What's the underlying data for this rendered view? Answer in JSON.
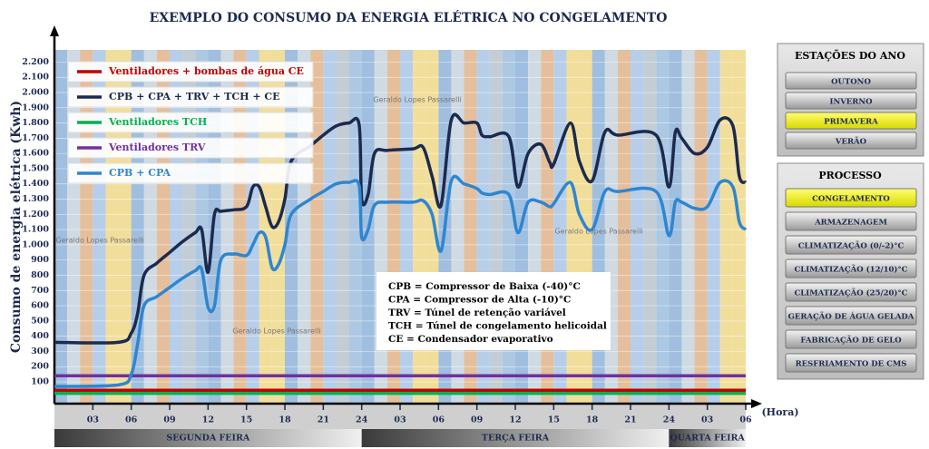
{
  "chart_data": {
    "type": "line",
    "title": "EXEMPLO DO CONSUMO DA ENERGIA ELÉTRICA NO CONGELAMENTO",
    "y_label": "Consumo de energia elétrica (Kwh)",
    "x_label": "(Hora)",
    "xlim": [
      0,
      54
    ],
    "ylim": [
      0,
      2280
    ],
    "grid": true,
    "xticks": [
      {
        "value": 3,
        "label": "03"
      },
      {
        "value": 6,
        "label": "06"
      },
      {
        "value": 9,
        "label": "09"
      },
      12,
      15,
      18,
      21,
      24,
      {
        "value": 27,
        "label": "03"
      },
      {
        "value": 30,
        "label": "06"
      },
      {
        "value": 33,
        "label": "09"
      },
      {
        "value": 36,
        "label": "12"
      },
      {
        "value": 39,
        "label": "15"
      },
      {
        "value": 42,
        "label": "18"
      },
      {
        "value": 45,
        "label": "21"
      },
      {
        "value": 48,
        "label": "24"
      },
      {
        "value": 51,
        "label": "03"
      },
      {
        "value": 54,
        "label": "06"
      }
    ],
    "yticks": [
      100,
      200,
      300,
      400,
      500,
      600,
      700,
      800,
      900,
      {
        "value": 1000,
        "label": "1.000"
      },
      {
        "value": 1100,
        "label": "1.100"
      },
      {
        "value": 1200,
        "label": "1.200"
      },
      {
        "value": 1300,
        "label": "1.300"
      },
      {
        "value": 1400,
        "label": "1.400"
      },
      {
        "value": 1500,
        "label": "1.500"
      },
      {
        "value": 1600,
        "label": "1.600"
      },
      {
        "value": 1700,
        "label": "1.700"
      },
      {
        "value": 1800,
        "label": "1.800"
      },
      {
        "value": 1900,
        "label": "1.900"
      },
      {
        "value": 2000,
        "label": "2.000"
      },
      {
        "value": 2100,
        "label": "2.100"
      },
      {
        "value": 2200,
        "label": "2.200"
      }
    ],
    "days": [
      {
        "text": "SEGUNDA FEIRA",
        "from": 0,
        "to": 24
      },
      {
        "text": "TERÇA FEIRA",
        "from": 24,
        "to": 48
      },
      {
        "text": "QUARTA FEIRA",
        "from": 48,
        "to": 54
      }
    ],
    "watermark": "Geraldo Lopes Passarelli",
    "definitions": [
      "CPB = Compressor de Baixa (-40)°C",
      "CPA = Compressor de Alta (-10)°C",
      "TRV = Túnel de retenção variável",
      "TCH = Túnel de congelamento helicoidal",
      "CE = Condensador evaporativo"
    ],
    "series": [
      {
        "name": "Ventiladores + bombas de água CE",
        "color": "#c00000",
        "x": [
          0,
          54
        ],
        "values": [
          45,
          45
        ]
      },
      {
        "name": "CPB + CPA + TRV + TCH + CE",
        "color": "#1c2a4e",
        "x": [
          0,
          5,
          6,
          6.5,
          7,
          8,
          9,
          10,
          11,
          11.5,
          12,
          12.5,
          13,
          14,
          15,
          15.5,
          16,
          16.5,
          17,
          17.5,
          18,
          18.5,
          20,
          21,
          22,
          23,
          23.8,
          24,
          24.5,
          25,
          26,
          28,
          28.8,
          29.5,
          30.2,
          31,
          32,
          33,
          33.4,
          34,
          35.5,
          36.2,
          37,
          38,
          38.7,
          39,
          40.3,
          41,
          42,
          43,
          44,
          47,
          48,
          48.5,
          49,
          50,
          51,
          52,
          53,
          53.5,
          54
        ],
        "values": [
          360,
          360,
          420,
          550,
          800,
          880,
          950,
          1020,
          1080,
          1100,
          820,
          1200,
          1220,
          1230,
          1250,
          1380,
          1380,
          1250,
          1120,
          1150,
          1300,
          1550,
          1650,
          1720,
          1780,
          1800,
          1790,
          1300,
          1330,
          1600,
          1620,
          1630,
          1640,
          1450,
          1260,
          1820,
          1800,
          1800,
          1720,
          1710,
          1710,
          1380,
          1600,
          1660,
          1540,
          1530,
          1800,
          1550,
          1420,
          1740,
          1720,
          1720,
          1380,
          1740,
          1700,
          1600,
          1640,
          1820,
          1780,
          1450,
          1410
        ]
      },
      {
        "name": "Ventiladores TCH",
        "color": "#00b050",
        "x": [
          0,
          54
        ],
        "values": [
          25,
          25
        ]
      },
      {
        "name": "Ventiladores TRV",
        "color": "#7030a0",
        "x": [
          0,
          54
        ],
        "values": [
          140,
          140
        ]
      },
      {
        "name": "CPB + CPA",
        "color": "#2e86d0",
        "x": [
          0,
          5,
          6,
          6.5,
          7,
          8,
          9,
          10,
          11,
          11.5,
          12,
          12.5,
          13,
          14,
          15,
          15.5,
          16,
          16.5,
          17,
          17.5,
          18,
          18.5,
          20,
          21,
          22,
          23,
          23.8,
          24,
          24.5,
          25,
          26,
          28,
          28.8,
          29.5,
          30.2,
          31,
          32,
          33,
          33.4,
          34,
          35.5,
          36.2,
          37,
          38,
          38.7,
          39,
          40.3,
          41,
          42,
          43,
          44,
          47,
          48,
          48.5,
          49,
          50,
          51,
          52,
          53,
          53.5,
          54
        ],
        "values": [
          70,
          80,
          150,
          350,
          600,
          660,
          720,
          780,
          830,
          840,
          590,
          600,
          900,
          940,
          930,
          1000,
          1080,
          1050,
          850,
          870,
          1000,
          1200,
          1300,
          1350,
          1400,
          1410,
          1390,
          1050,
          1100,
          1260,
          1280,
          1280,
          1290,
          1200,
          960,
          1420,
          1400,
          1370,
          1340,
          1330,
          1330,
          1080,
          1280,
          1280,
          1250,
          1270,
          1410,
          1200,
          1100,
          1350,
          1350,
          1350,
          1060,
          1280,
          1280,
          1240,
          1250,
          1410,
          1380,
          1150,
          1100
        ]
      }
    ]
  },
  "panels": [
    {
      "title": "ESTAÇÕES DO ANO",
      "items": [
        "OUTONO",
        "INVERNO",
        "PRIMAVERA",
        "VERÃO"
      ],
      "active": 2
    },
    {
      "title": "PROCESSO",
      "items": [
        "CONGELAMENTO",
        "ARMAZENAGEM",
        "CLIMATIZAÇÃO (0/-2)°C",
        "CLIMATIZAÇÃO (12/10)°C",
        "CLIMATIZAÇÃO (25/20)°C",
        "GERAÇÃO DE ÁGUA GELADA",
        "FABRICAÇÃO DE GELO",
        "RESFRIAMENTO DE CMS"
      ],
      "active": 0
    }
  ]
}
